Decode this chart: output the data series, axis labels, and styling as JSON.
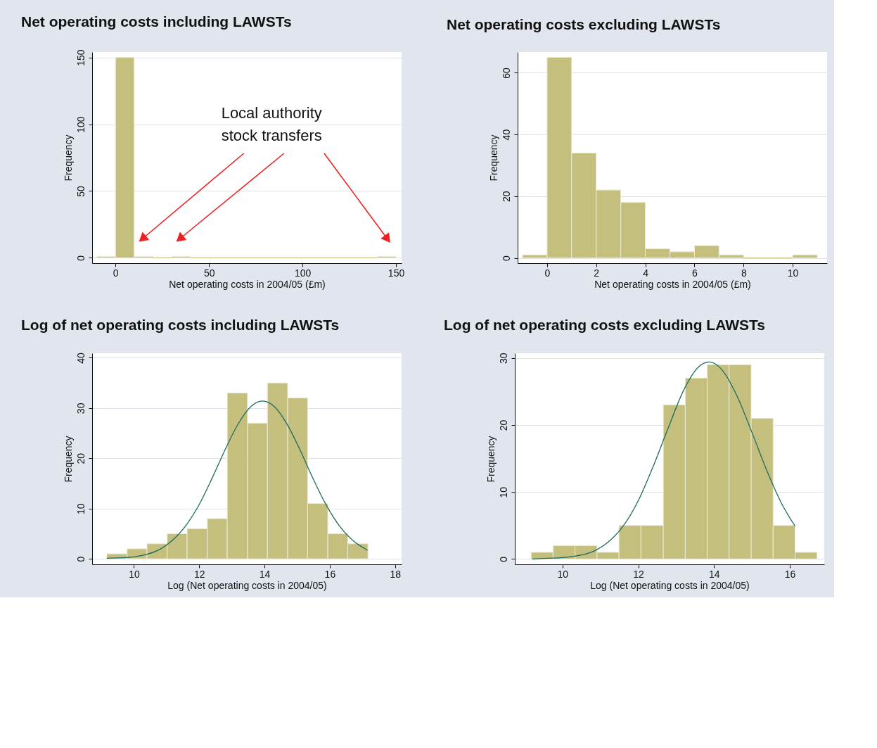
{
  "chart_data": [
    {
      "type": "histogram",
      "title": "Net operating costs including LAWSTs",
      "xlabel": "Net operating costs in 2004/05 (£m)",
      "ylabel": "Frequency",
      "bins": [
        -10,
        0,
        10,
        20,
        30,
        40,
        50,
        60,
        70,
        80,
        90,
        100,
        110,
        120,
        130,
        140,
        150
      ],
      "values": [
        1,
        150,
        1,
        0,
        1,
        0,
        0,
        0,
        0,
        0,
        0,
        0,
        0,
        0,
        0,
        1
      ],
      "color": "#c5bf7e",
      "xlim": [
        -12.5,
        153
      ],
      "xticks": [
        0,
        50,
        100,
        150
      ],
      "ylim": [
        -4,
        154
      ],
      "yticks": [
        0,
        50,
        100,
        150
      ],
      "grid": "y",
      "legend": false,
      "annotations": [
        "Local authority stock transfers"
      ]
    },
    {
      "type": "histogram",
      "title": "Net operating costs excluding LAWSTs",
      "xlabel": "Net operating costs in 2004/05 (£m)",
      "ylabel": "Frequency",
      "bins": [
        -1,
        0,
        1,
        2,
        3,
        4,
        5,
        6,
        7,
        8,
        9,
        10,
        11
      ],
      "values": [
        1,
        65,
        34,
        22,
        18,
        3,
        2,
        4,
        1,
        0,
        0,
        1
      ],
      "color": "#c5bf7e",
      "xlim": [
        -1.2,
        11.4
      ],
      "xticks": [
        0,
        2,
        4,
        6,
        8,
        10
      ],
      "ylim": [
        -1.7,
        66.7
      ],
      "yticks": [
        0,
        20,
        40,
        60
      ],
      "grid": "y",
      "legend": false
    },
    {
      "type": "histogram",
      "title": "Log of net operating costs including LAWSTs",
      "xlabel": "Log (Net operating costs in 2004/05)",
      "ylabel": "Frequency",
      "bins": [
        9.17,
        9.79,
        10.4,
        11.02,
        11.63,
        12.25,
        12.86,
        13.48,
        14.09,
        14.71,
        15.32,
        15.94,
        16.55,
        17.17
      ],
      "values": [
        1,
        2,
        3,
        5,
        6,
        8,
        33,
        27,
        35,
        32,
        11,
        5,
        3
      ],
      "color": "#c5bf7e",
      "xlim": [
        8.72,
        18.2
      ],
      "xticks": [
        10,
        12,
        14,
        16,
        18
      ],
      "ylim": [
        -1.1,
        40.9
      ],
      "yticks": [
        0,
        10,
        20,
        30,
        40
      ],
      "grid": "y",
      "legend": false,
      "series": [
        {
          "type": "line",
          "color": "#1b6b5f",
          "x": [
            9.17,
            9.6,
            10.0,
            10.4,
            10.8,
            11.2,
            11.6,
            12.0,
            12.4,
            12.8,
            13.2,
            13.6,
            13.94,
            14.3,
            14.7,
            15.1,
            15.5,
            15.9,
            16.3,
            16.7,
            17.16
          ],
          "values": [
            0.1,
            0.2,
            0.4,
            0.9,
            1.9,
            3.8,
            6.7,
            10.8,
            16.1,
            21.8,
            26.9,
            30.4,
            31.4,
            30.3,
            26.7,
            21.5,
            15.8,
            10.6,
            6.5,
            3.7,
            1.7
          ]
        }
      ]
    },
    {
      "type": "histogram",
      "title": "Log of net operating costs excluding LAWSTs",
      "xlabel": "Log (Net operating costs in 2004/05)",
      "ylabel": "Frequency",
      "bins": [
        9.17,
        9.75,
        10.33,
        10.91,
        11.49,
        12.07,
        12.66,
        13.24,
        13.82,
        14.4,
        14.98,
        15.56,
        16.14,
        16.72
      ],
      "values": [
        1,
        2,
        2,
        1,
        5,
        5,
        23,
        27,
        29,
        29,
        21,
        5,
        1
      ],
      "color": "#c5bf7e",
      "xlim": [
        8.74,
        16.91
      ],
      "xticks": [
        10,
        12,
        14,
        16
      ],
      "ylim": [
        -0.8,
        30.7
      ],
      "yticks": [
        0,
        10,
        20,
        30
      ],
      "grid": "y",
      "legend": false,
      "series": [
        {
          "type": "line",
          "color": "#1b6b5f",
          "x": [
            9.2,
            9.6,
            10.0,
            10.4,
            10.8,
            11.2,
            11.6,
            12.0,
            12.4,
            12.8,
            13.2,
            13.6,
            13.87,
            14.2,
            14.6,
            15.0,
            15.4,
            15.8,
            16.14
          ],
          "values": [
            0.0,
            0.1,
            0.2,
            0.5,
            1.1,
            2.5,
            4.9,
            8.7,
            13.9,
            19.7,
            25.2,
            28.7,
            29.4,
            28.3,
            24.4,
            18.9,
            13.1,
            8.1,
            4.9
          ]
        }
      ]
    }
  ]
}
